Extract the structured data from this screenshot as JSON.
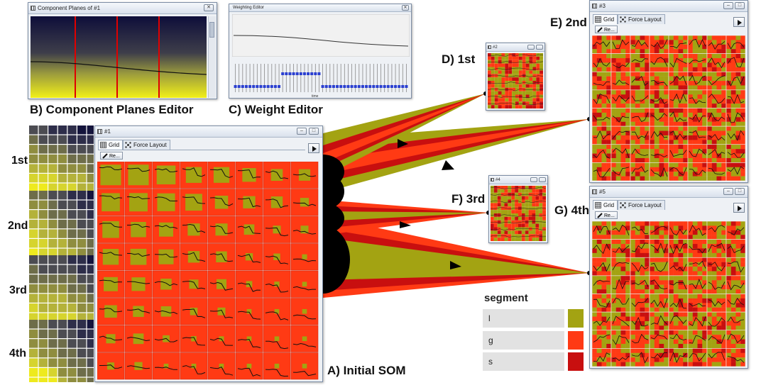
{
  "captions": {
    "initial_som": "A) Initial SOM",
    "component_planes": "B) Component Planes Editor",
    "weight_editor": "C) Weight Editor",
    "d": "D) 1st",
    "e": "E) 2nd",
    "f": "F) 3rd",
    "g": "G) 4th"
  },
  "plane_labels": [
    "1st",
    "2nd",
    "3rd",
    "4th"
  ],
  "windows": {
    "component_planes": {
      "title": "Component Planes of #1"
    },
    "weight_editor": {
      "title": "Weighting Editor",
      "axis_label": "time"
    },
    "som1": {
      "title": "#1"
    },
    "som2": {
      "title": "#2"
    },
    "som3": {
      "title": "#3"
    },
    "som4": {
      "title": "#4"
    },
    "som5": {
      "title": "#5"
    }
  },
  "tabs": {
    "grid": "Grid",
    "force": "Force Layout",
    "reset": "Re..."
  },
  "legend": {
    "title": "segment",
    "items": [
      {
        "label": "l",
        "color": "#a3a312"
      },
      {
        "label": "g",
        "color": "#ff3a14"
      },
      {
        "label": "s",
        "color": "#c80f0f"
      }
    ]
  },
  "colors": {
    "olive": "#a3a312",
    "red": "#ff3a14",
    "dark_red": "#c80f0f",
    "funnel_black": "#000000"
  }
}
